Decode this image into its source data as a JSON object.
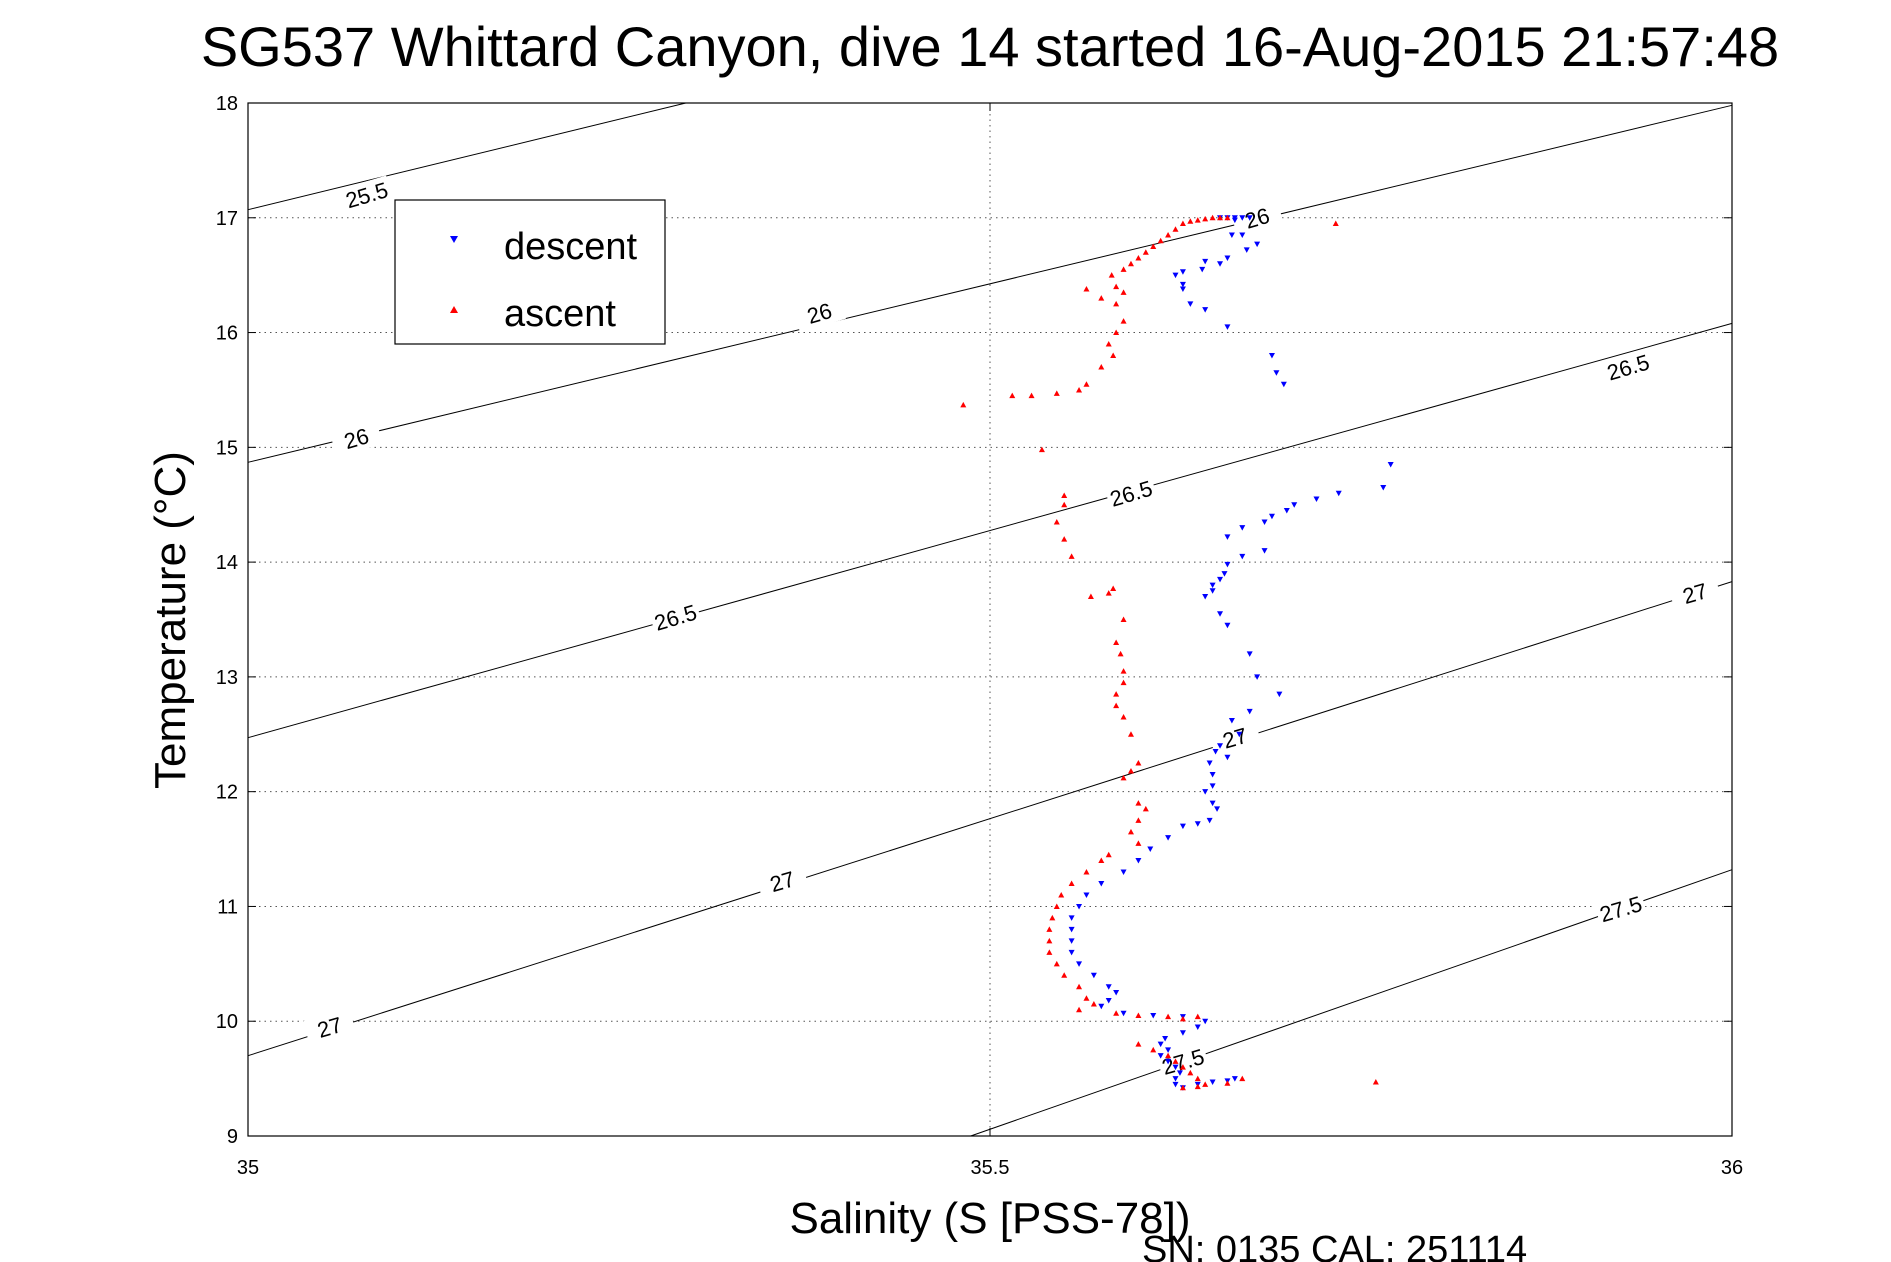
{
  "chart_data": {
    "type": "scatter",
    "title": "SG537 Whittard Canyon, dive 14 started 16-Aug-2015 21:57:48",
    "xlabel": "Salinity (S [PSS-78])",
    "ylabel": "Temperature (°C)",
    "xlim": [
      35,
      36
    ],
    "ylim": [
      9,
      18
    ],
    "x_ticks": [
      35,
      35.5,
      36
    ],
    "y_ticks": [
      9,
      10,
      11,
      12,
      13,
      14,
      15,
      16,
      17,
      18
    ],
    "grid": true,
    "legend_placement": "top-left",
    "footer": "SN: 0135  CAL: 251114",
    "colors": {
      "descent": "#0000ff",
      "ascent": "#ff0000",
      "contour": "#000000",
      "grid": "#555555"
    },
    "contours": [
      {
        "level": "25.5",
        "points": [
          [
            35,
            17.07
          ],
          [
            35.295,
            18
          ]
        ]
      },
      {
        "level": "26",
        "points": [
          [
            35,
            14.87
          ],
          [
            36,
            17.98
          ]
        ]
      },
      {
        "level": "26.5",
        "points": [
          [
            35,
            12.47
          ],
          [
            36,
            16.08
          ]
        ]
      },
      {
        "level": "27",
        "points": [
          [
            35,
            9.7
          ],
          [
            36,
            13.83
          ]
        ]
      },
      {
        "level": "27.5",
        "points": [
          [
            35.487,
            9
          ],
          [
            36,
            11.32
          ]
        ]
      }
    ],
    "contour_labels": [
      {
        "text": "25.5",
        "x": 35.08,
        "y": 17.2
      },
      {
        "text": "26",
        "x": 35.68,
        "y": 17.0
      },
      {
        "text": "26",
        "x": 35.385,
        "y": 16.17
      },
      {
        "text": "26",
        "x": 35.073,
        "y": 15.08
      },
      {
        "text": "26.5",
        "x": 35.93,
        "y": 15.7
      },
      {
        "text": "26.5",
        "x": 35.595,
        "y": 14.6
      },
      {
        "text": "26.5",
        "x": 35.288,
        "y": 13.52
      },
      {
        "text": "27",
        "x": 35.975,
        "y": 13.73
      },
      {
        "text": "27",
        "x": 35.665,
        "y": 12.47
      },
      {
        "text": "27",
        "x": 35.36,
        "y": 11.22
      },
      {
        "text": "27",
        "x": 35.055,
        "y": 9.95
      },
      {
        "text": "27.5",
        "x": 35.925,
        "y": 10.98
      },
      {
        "text": "27.5",
        "x": 35.63,
        "y": 9.65
      }
    ],
    "series": [
      {
        "name": "descent",
        "marker": "down-triangle",
        "points": [
          [
            35.655,
            17.0
          ],
          [
            35.66,
            17.0
          ],
          [
            35.665,
            17.0
          ],
          [
            35.67,
            17.0
          ],
          [
            35.675,
            17.0
          ],
          [
            35.665,
            16.98
          ],
          [
            35.663,
            16.85
          ],
          [
            35.67,
            16.85
          ],
          [
            35.68,
            16.77
          ],
          [
            35.673,
            16.72
          ],
          [
            35.66,
            16.65
          ],
          [
            35.655,
            16.6
          ],
          [
            35.645,
            16.62
          ],
          [
            35.643,
            16.55
          ],
          [
            35.63,
            16.53
          ],
          [
            35.625,
            16.5
          ],
          [
            35.63,
            16.42
          ],
          [
            35.63,
            16.38
          ],
          [
            35.635,
            16.25
          ],
          [
            35.645,
            16.2
          ],
          [
            35.66,
            16.05
          ],
          [
            35.69,
            15.8
          ],
          [
            35.693,
            15.65
          ],
          [
            35.698,
            15.55
          ],
          [
            35.77,
            14.85
          ],
          [
            35.765,
            14.65
          ],
          [
            35.735,
            14.6
          ],
          [
            35.72,
            14.55
          ],
          [
            35.705,
            14.5
          ],
          [
            35.7,
            14.45
          ],
          [
            35.69,
            14.4
          ],
          [
            35.685,
            14.35
          ],
          [
            35.67,
            14.3
          ],
          [
            35.66,
            14.22
          ],
          [
            35.685,
            14.1
          ],
          [
            35.67,
            14.05
          ],
          [
            35.66,
            13.98
          ],
          [
            35.658,
            13.9
          ],
          [
            35.655,
            13.85
          ],
          [
            35.65,
            13.8
          ],
          [
            35.65,
            13.75
          ],
          [
            35.645,
            13.7
          ],
          [
            35.655,
            13.55
          ],
          [
            35.66,
            13.45
          ],
          [
            35.675,
            13.2
          ],
          [
            35.68,
            13.0
          ],
          [
            35.695,
            12.85
          ],
          [
            35.675,
            12.7
          ],
          [
            35.663,
            12.62
          ],
          [
            35.668,
            12.5
          ],
          [
            35.655,
            12.4
          ],
          [
            35.652,
            12.35
          ],
          [
            35.66,
            12.3
          ],
          [
            35.648,
            12.25
          ],
          [
            35.65,
            12.15
          ],
          [
            35.65,
            12.05
          ],
          [
            35.645,
            12.0
          ],
          [
            35.65,
            11.9
          ],
          [
            35.653,
            11.85
          ],
          [
            35.648,
            11.75
          ],
          [
            35.64,
            11.72
          ],
          [
            35.63,
            11.7
          ],
          [
            35.62,
            11.6
          ],
          [
            35.608,
            11.5
          ],
          [
            35.6,
            11.4
          ],
          [
            35.59,
            11.3
          ],
          [
            35.575,
            11.2
          ],
          [
            35.565,
            11.1
          ],
          [
            35.56,
            11.0
          ],
          [
            35.555,
            10.9
          ],
          [
            35.555,
            10.8
          ],
          [
            35.555,
            10.7
          ],
          [
            35.555,
            10.6
          ],
          [
            35.56,
            10.5
          ],
          [
            35.57,
            10.4
          ],
          [
            35.58,
            10.3
          ],
          [
            35.585,
            10.25
          ],
          [
            35.58,
            10.18
          ],
          [
            35.575,
            10.13
          ],
          [
            35.59,
            10.07
          ],
          [
            35.61,
            10.05
          ],
          [
            35.63,
            10.04
          ],
          [
            35.645,
            10.0
          ],
          [
            35.64,
            9.95
          ],
          [
            35.63,
            9.9
          ],
          [
            35.618,
            9.85
          ],
          [
            35.615,
            9.8
          ],
          [
            35.62,
            9.75
          ],
          [
            35.615,
            9.7
          ],
          [
            35.62,
            9.65
          ],
          [
            35.625,
            9.6
          ],
          [
            35.628,
            9.55
          ],
          [
            35.625,
            9.5
          ],
          [
            35.625,
            9.45
          ],
          [
            35.63,
            9.42
          ],
          [
            35.64,
            9.45
          ],
          [
            35.65,
            9.47
          ],
          [
            35.66,
            9.48
          ],
          [
            35.665,
            9.5
          ]
        ]
      },
      {
        "name": "ascent",
        "marker": "up-triangle",
        "points": [
          [
            35.733,
            16.95
          ],
          [
            35.66,
            17.0
          ],
          [
            35.655,
            17.0
          ],
          [
            35.65,
            17.0
          ],
          [
            35.645,
            16.99
          ],
          [
            35.64,
            16.98
          ],
          [
            35.635,
            16.97
          ],
          [
            35.63,
            16.95
          ],
          [
            35.625,
            16.9
          ],
          [
            35.62,
            16.85
          ],
          [
            35.615,
            16.8
          ],
          [
            35.61,
            16.75
          ],
          [
            35.605,
            16.7
          ],
          [
            35.6,
            16.65
          ],
          [
            35.595,
            16.6
          ],
          [
            35.59,
            16.55
          ],
          [
            35.582,
            16.5
          ],
          [
            35.585,
            16.4
          ],
          [
            35.59,
            16.35
          ],
          [
            35.575,
            16.3
          ],
          [
            35.585,
            16.25
          ],
          [
            35.565,
            16.38
          ],
          [
            35.59,
            16.1
          ],
          [
            35.585,
            16.0
          ],
          [
            35.58,
            15.9
          ],
          [
            35.583,
            15.8
          ],
          [
            35.575,
            15.7
          ],
          [
            35.565,
            15.55
          ],
          [
            35.56,
            15.5
          ],
          [
            35.545,
            15.47
          ],
          [
            35.528,
            15.45
          ],
          [
            35.515,
            15.45
          ],
          [
            35.482,
            15.37
          ],
          [
            35.535,
            14.98
          ],
          [
            35.55,
            14.58
          ],
          [
            35.55,
            14.5
          ],
          [
            35.545,
            14.35
          ],
          [
            35.55,
            14.2
          ],
          [
            35.555,
            14.05
          ],
          [
            35.568,
            13.7
          ],
          [
            35.58,
            13.73
          ],
          [
            35.583,
            13.77
          ],
          [
            35.59,
            13.5
          ],
          [
            35.585,
            13.3
          ],
          [
            35.588,
            13.2
          ],
          [
            35.59,
            13.05
          ],
          [
            35.59,
            12.95
          ],
          [
            35.585,
            12.85
          ],
          [
            35.585,
            12.75
          ],
          [
            35.59,
            12.65
          ],
          [
            35.595,
            12.5
          ],
          [
            35.6,
            12.25
          ],
          [
            35.595,
            12.18
          ],
          [
            35.59,
            12.12
          ],
          [
            35.6,
            11.9
          ],
          [
            35.605,
            11.85
          ],
          [
            35.6,
            11.75
          ],
          [
            35.595,
            11.65
          ],
          [
            35.6,
            11.55
          ],
          [
            35.58,
            11.45
          ],
          [
            35.575,
            11.4
          ],
          [
            35.565,
            11.3
          ],
          [
            35.555,
            11.2
          ],
          [
            35.548,
            11.1
          ],
          [
            35.545,
            11.0
          ],
          [
            35.542,
            10.9
          ],
          [
            35.54,
            10.8
          ],
          [
            35.54,
            10.7
          ],
          [
            35.54,
            10.6
          ],
          [
            35.545,
            10.5
          ],
          [
            35.55,
            10.4
          ],
          [
            35.56,
            10.3
          ],
          [
            35.565,
            10.2
          ],
          [
            35.57,
            10.15
          ],
          [
            35.56,
            10.1
          ],
          [
            35.585,
            10.07
          ],
          [
            35.6,
            10.05
          ],
          [
            35.62,
            10.04
          ],
          [
            35.63,
            10.02
          ],
          [
            35.64,
            10.04
          ],
          [
            35.6,
            9.8
          ],
          [
            35.61,
            9.75
          ],
          [
            35.62,
            9.7
          ],
          [
            35.625,
            9.65
          ],
          [
            35.63,
            9.6
          ],
          [
            35.635,
            9.55
          ],
          [
            35.64,
            9.5
          ],
          [
            35.645,
            9.45
          ],
          [
            35.63,
            9.42
          ],
          [
            35.64,
            9.43
          ],
          [
            35.66,
            9.46
          ],
          [
            35.67,
            9.5
          ],
          [
            35.76,
            9.47
          ]
        ]
      }
    ]
  }
}
